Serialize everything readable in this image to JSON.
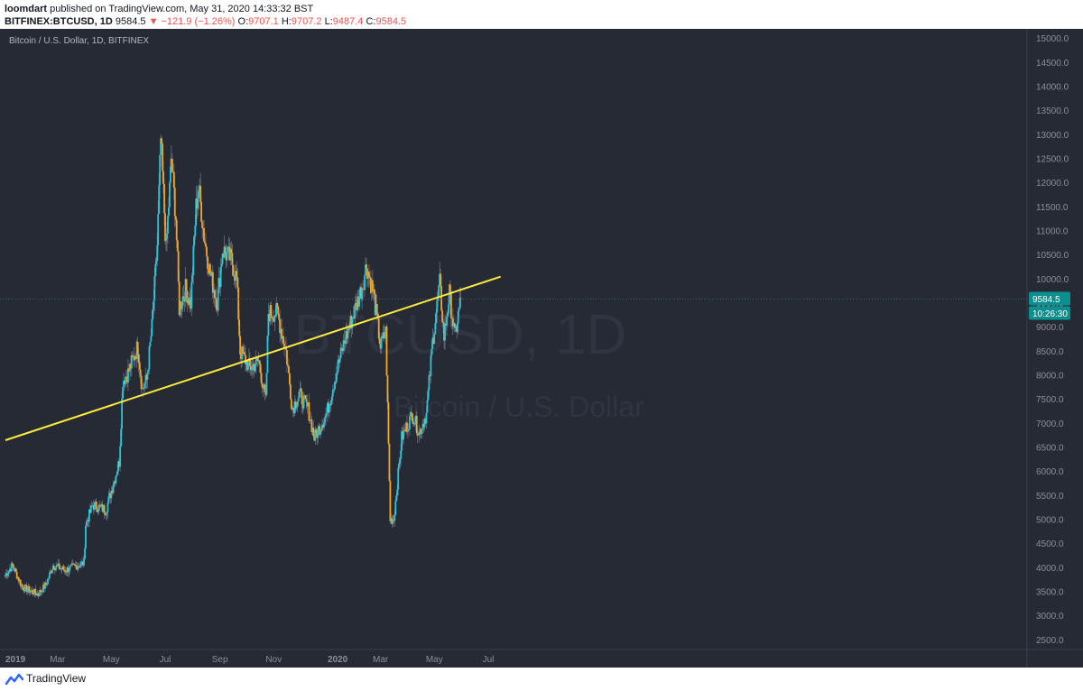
{
  "header": {
    "author": "loomdart",
    "published_text": "published on TradingView.com, May 31, 2020 14:33:32 BST",
    "symbol": "BITFINEX:BTCUSD, 1D",
    "last": "9584.5",
    "change": "▼ −121.9 (−1.26%)",
    "o_label": "O:",
    "o_value": "9707.1",
    "h_label": "H:",
    "h_value": "9707.2",
    "l_label": "L:",
    "l_value": "9487.4",
    "c_label": "C:",
    "c_value": "9584.5"
  },
  "chart_title": "Bitcoin / U.S. Dollar, 1D, BITFINEX",
  "watermark": {
    "main": "BTCUSD, 1D",
    "sub": "Bitcoin / U.S. Dollar"
  },
  "footer": {
    "brand": "TradingView"
  },
  "colors": {
    "background": "#262a35",
    "up": "#26c6da",
    "down": "#f5a623",
    "trendline": "#ffeb3b",
    "price_tag": "#0e8f8f",
    "axis_text": "#8c8f99"
  },
  "chart_data": {
    "type": "candlestick",
    "ylim": [
      2300,
      15200
    ],
    "y_ticks": [
      2500,
      3000,
      3500,
      4000,
      4500,
      5000,
      5500,
      6000,
      6500,
      7000,
      7500,
      8000,
      8500,
      9000,
      9500,
      10000,
      10500,
      11000,
      11500,
      12000,
      12500,
      13000,
      13500,
      14000,
      14500,
      15000
    ],
    "x_ticks": [
      {
        "label": "2019",
        "date": "2019-01-01"
      },
      {
        "label": "Mar",
        "date": "2019-03-01"
      },
      {
        "label": "May",
        "date": "2019-05-01"
      },
      {
        "label": "Jul",
        "date": "2019-07-01"
      },
      {
        "label": "Sep",
        "date": "2019-09-01"
      },
      {
        "label": "Nov",
        "date": "2019-11-01"
      },
      {
        "label": "2020",
        "date": "2020-01-01"
      },
      {
        "label": "Mar",
        "date": "2020-03-01"
      },
      {
        "label": "May",
        "date": "2020-05-01"
      },
      {
        "label": "Jul",
        "date": "2020-07-01"
      }
    ],
    "close_path": [
      [
        "2019-01-01",
        3850
      ],
      [
        "2019-01-09",
        4050
      ],
      [
        "2019-01-20",
        3600
      ],
      [
        "2019-02-07",
        3450
      ],
      [
        "2019-02-16",
        3650
      ],
      [
        "2019-02-24",
        4050
      ],
      [
        "2019-03-10",
        3950
      ],
      [
        "2019-03-31",
        4100
      ],
      [
        "2019-04-02",
        4900
      ],
      [
        "2019-04-10",
        5300
      ],
      [
        "2019-04-25",
        5200
      ],
      [
        "2019-05-10",
        6200
      ],
      [
        "2019-05-14",
        7900
      ],
      [
        "2019-05-20",
        8050
      ],
      [
        "2019-05-31",
        8600
      ],
      [
        "2019-06-05",
        7700
      ],
      [
        "2019-06-10",
        7900
      ],
      [
        "2019-06-16",
        9000
      ],
      [
        "2019-06-22",
        10700
      ],
      [
        "2019-06-26",
        12900
      ],
      [
        "2019-06-29",
        11800
      ],
      [
        "2019-07-02",
        10600
      ],
      [
        "2019-07-08",
        12500
      ],
      [
        "2019-07-13",
        11300
      ],
      [
        "2019-07-17",
        9400
      ],
      [
        "2019-07-24",
        9800
      ],
      [
        "2019-07-30",
        9500
      ],
      [
        "2019-08-05",
        11500
      ],
      [
        "2019-08-08",
        11900
      ],
      [
        "2019-08-14",
        10900
      ],
      [
        "2019-08-20",
        10200
      ],
      [
        "2019-08-29",
        9500
      ],
      [
        "2019-09-04",
        10600
      ],
      [
        "2019-09-14",
        10400
      ],
      [
        "2019-09-20",
        10000
      ],
      [
        "2019-09-24",
        8500
      ],
      [
        "2019-10-05",
        8150
      ],
      [
        "2019-10-15",
        8300
      ],
      [
        "2019-10-23",
        7450
      ],
      [
        "2019-10-26",
        9300
      ],
      [
        "2019-11-05",
        9300
      ],
      [
        "2019-11-15",
        8500
      ],
      [
        "2019-11-22",
        7300
      ],
      [
        "2019-11-30",
        7600
      ],
      [
        "2019-12-10",
        7300
      ],
      [
        "2019-12-17",
        6700
      ],
      [
        "2019-12-31",
        7200
      ],
      [
        "2020-01-10",
        8000
      ],
      [
        "2020-01-20",
        8700
      ],
      [
        "2020-01-31",
        9300
      ],
      [
        "2020-02-10",
        9900
      ],
      [
        "2020-02-14",
        10300
      ],
      [
        "2020-02-22",
        9700
      ],
      [
        "2020-03-01",
        8600
      ],
      [
        "2020-03-07",
        8900
      ],
      [
        "2020-03-12",
        5000
      ],
      [
        "2020-03-16",
        5000
      ],
      [
        "2020-03-25",
        6700
      ],
      [
        "2020-04-06",
        7200
      ],
      [
        "2020-04-14",
        6800
      ],
      [
        "2020-04-22",
        7200
      ],
      [
        "2020-04-29",
        8700
      ],
      [
        "2020-05-07",
        9900
      ],
      [
        "2020-05-12",
        8800
      ],
      [
        "2020-05-18",
        9700
      ],
      [
        "2020-05-24",
        8800
      ],
      [
        "2020-05-31",
        9584.5
      ]
    ],
    "trendline": {
      "start": {
        "date": "2019-01-01",
        "value": 6650
      },
      "end": {
        "date": "2020-07-15",
        "value": 10050
      }
    },
    "last_price": {
      "value": 9584.5,
      "label": "9584.5",
      "countdown": "10:26:30"
    }
  }
}
